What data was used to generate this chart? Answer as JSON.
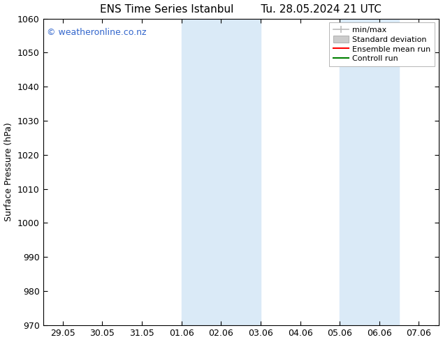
{
  "title": "ENS Time Series Istanbul",
  "title2": "Tu. 28.05.2024 21 UTC",
  "ylabel": "Surface Pressure (hPa)",
  "ylim": [
    970,
    1060
  ],
  "yticks": [
    970,
    980,
    990,
    1000,
    1010,
    1020,
    1030,
    1040,
    1050,
    1060
  ],
  "xtick_labels": [
    "29.05",
    "30.05",
    "31.05",
    "01.06",
    "02.06",
    "03.06",
    "04.06",
    "05.06",
    "06.06",
    "07.06"
  ],
  "xtick_positions": [
    0,
    1,
    2,
    3,
    4,
    5,
    6,
    7,
    8,
    9
  ],
  "background_color": "#ffffff",
  "plot_bg_color": "#ffffff",
  "shaded_band1_start": 3,
  "shaded_band1_end": 5,
  "shaded_band2_start": 7,
  "shaded_band2_end": 8.5,
  "shaded_color": "#daeaf7",
  "watermark_text": "© weatheronline.co.nz",
  "watermark_color": "#3366cc",
  "legend_items": [
    {
      "label": "min/max",
      "color": "#bbbbbb",
      "type": "errorbar"
    },
    {
      "label": "Standard deviation",
      "color": "#cccccc",
      "type": "patch"
    },
    {
      "label": "Ensemble mean run",
      "color": "#ff0000",
      "type": "line"
    },
    {
      "label": "Controll run",
      "color": "#008000",
      "type": "line"
    }
  ],
  "title_fontsize": 11,
  "ylabel_fontsize": 9,
  "tick_fontsize": 9,
  "watermark_fontsize": 9,
  "legend_fontsize": 8
}
